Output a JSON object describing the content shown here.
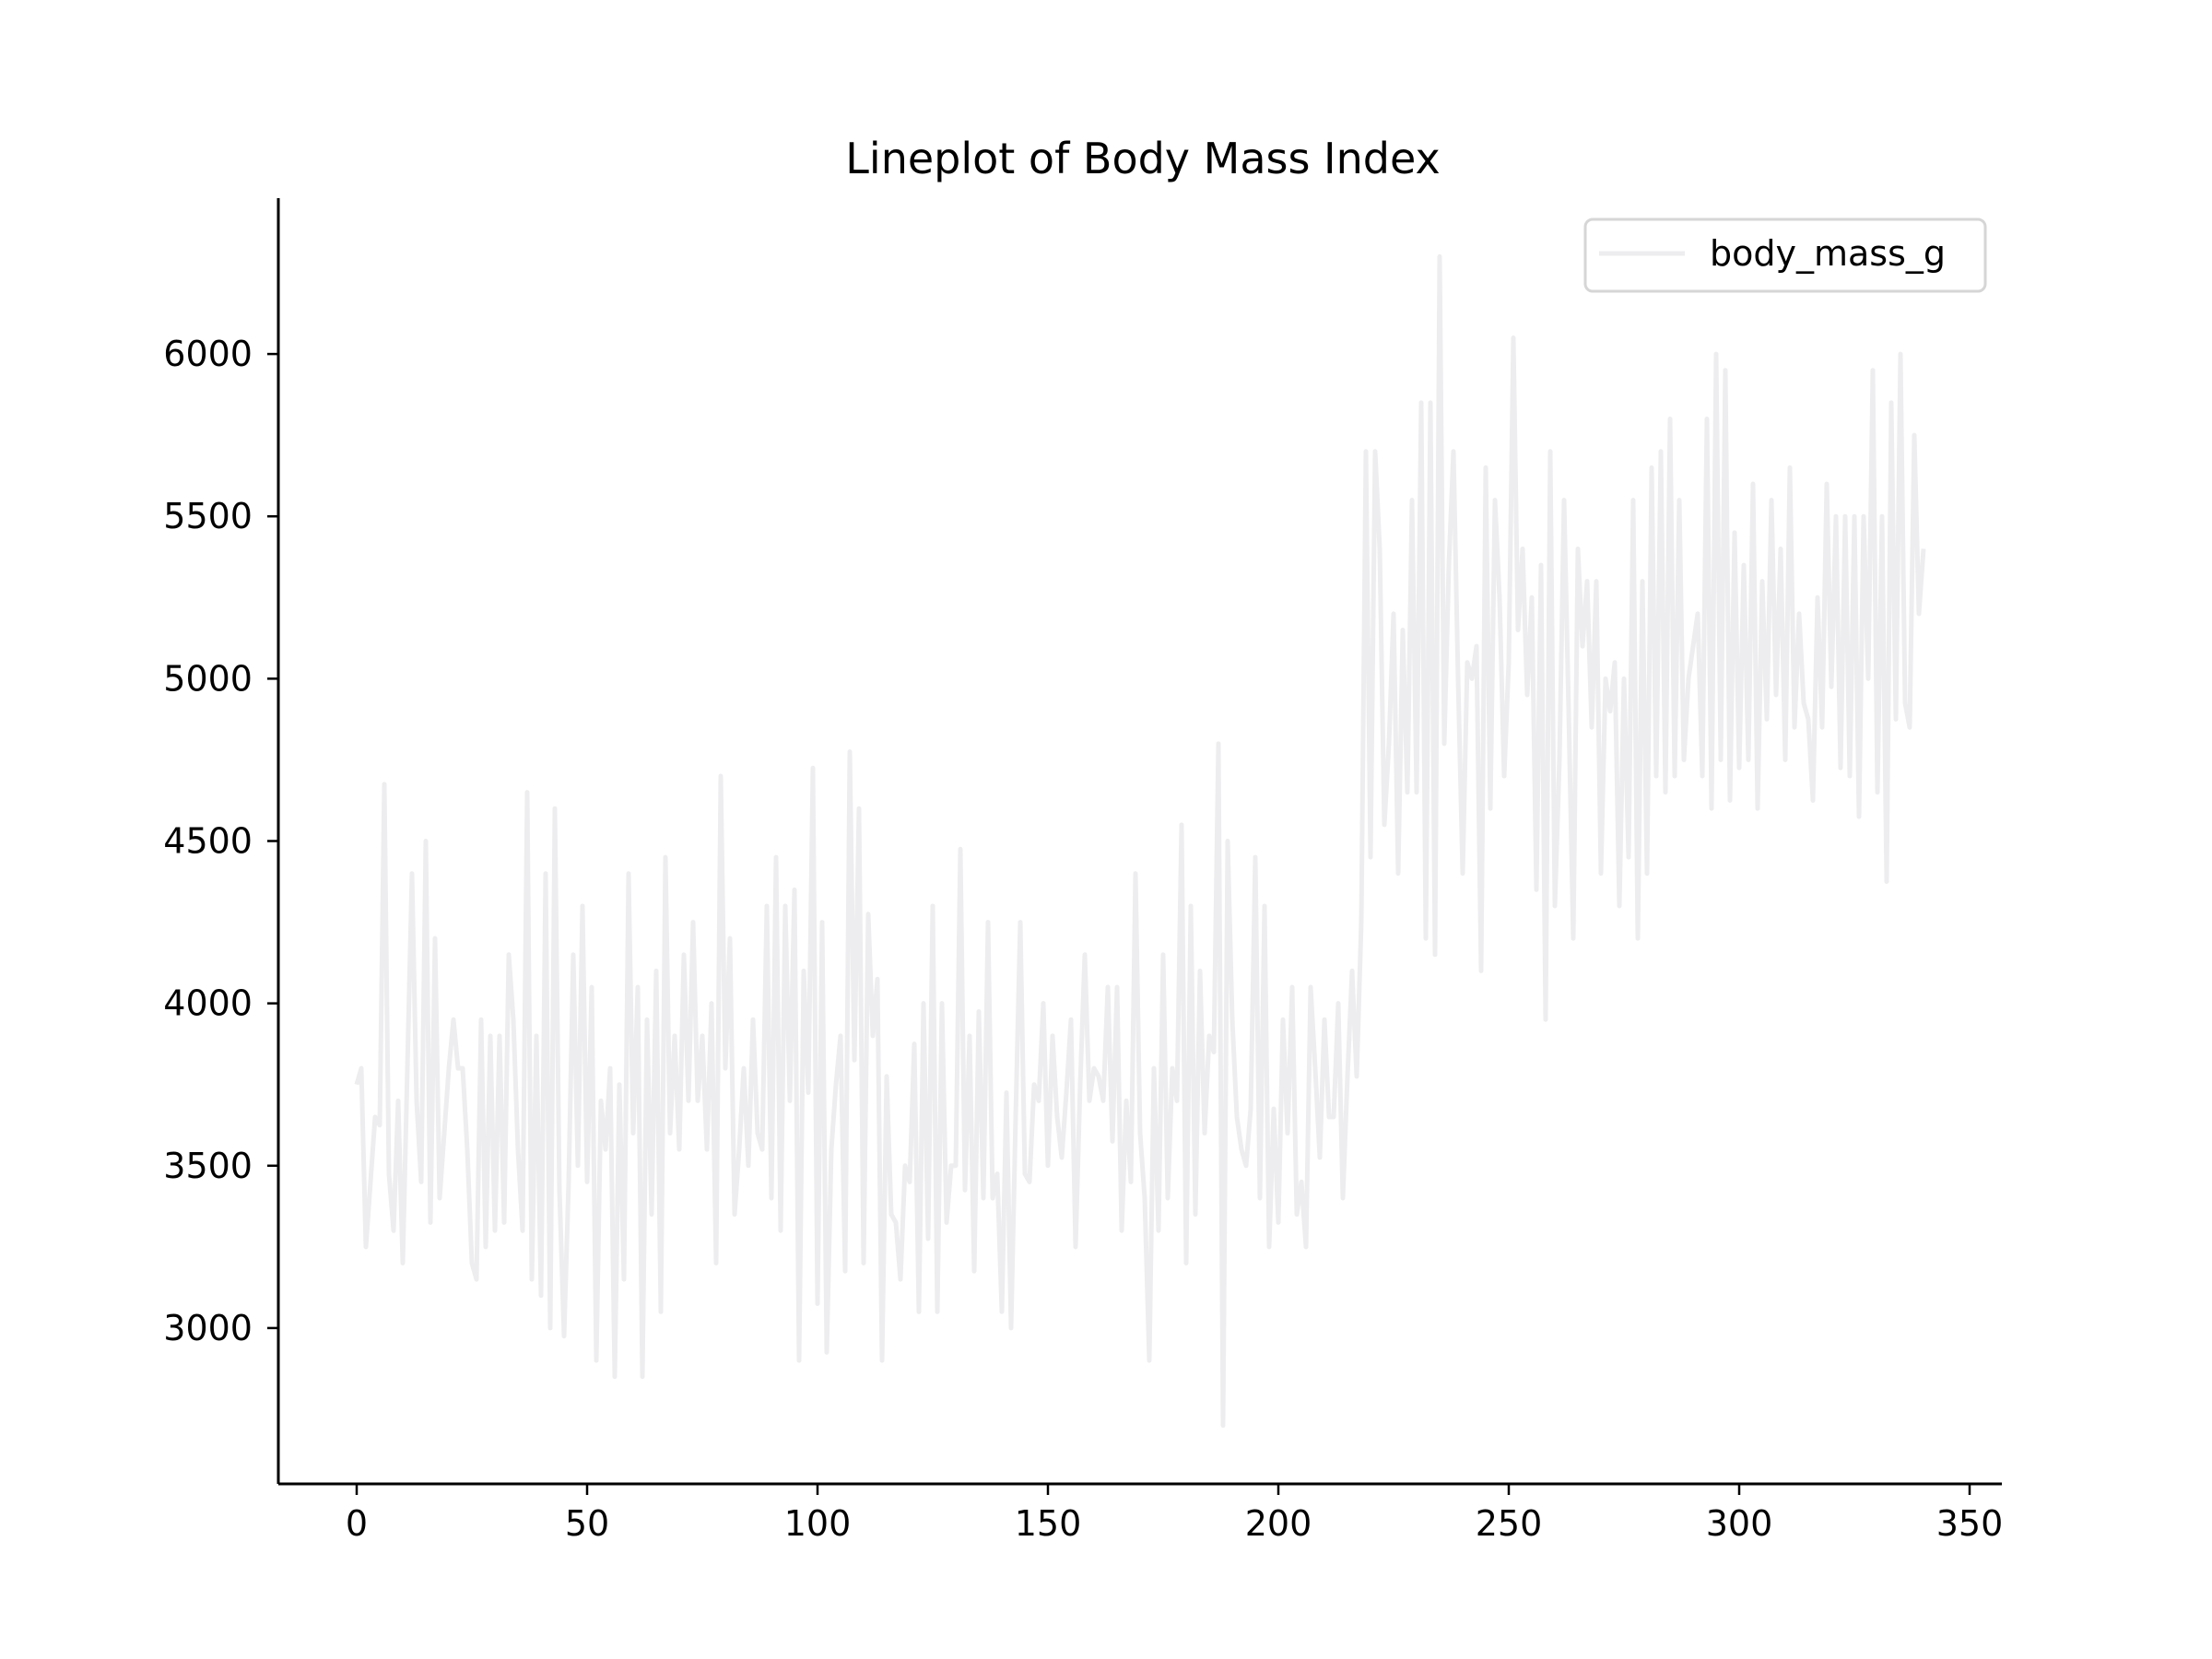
{
  "chart_data": {
    "type": "line",
    "title": "Lineplot of Body Mass Index",
    "xlabel": "",
    "ylabel": "",
    "xlim": [
      -17,
      357
    ],
    "ylim": [
      2520,
      6480
    ],
    "xticks": [
      0,
      50,
      100,
      150,
      200,
      250,
      300,
      350
    ],
    "yticks": [
      3000,
      3500,
      4000,
      4500,
      5000,
      5500,
      6000
    ],
    "grid": false,
    "legend": {
      "position": "top-right",
      "entries": [
        "body_mass_g"
      ]
    },
    "series": [
      {
        "name": "body_mass_g",
        "color": "#ededef",
        "x_start": 0,
        "x_step": 1,
        "values": [
          3750,
          3800,
          3250,
          3450,
          3650,
          3625,
          4675,
          3475,
          3300,
          3700,
          3200,
          3800,
          4400,
          3700,
          3450,
          4500,
          3325,
          4200,
          3400,
          3600,
          3800,
          3950,
          3800,
          3800,
          3550,
          3200,
          3150,
          3950,
          3250,
          3900,
          3300,
          3900,
          3325,
          4150,
          3950,
          3550,
          3300,
          4650,
          3150,
          3900,
          3100,
          4400,
          3000,
          4600,
          3425,
          2975,
          3450,
          4150,
          3500,
          4300,
          3450,
          4050,
          2900,
          3700,
          3550,
          3800,
          2850,
          3750,
          3150,
          4400,
          3600,
          4050,
          2850,
          3950,
          3350,
          4100,
          3050,
          4450,
          3600,
          3900,
          3550,
          4150,
          3700,
          4250,
          3700,
          3900,
          3550,
          4000,
          3200,
          4700,
          3800,
          4200,
          3350,
          3550,
          3800,
          3500,
          3950,
          3600,
          3550,
          4300,
          3400,
          4450,
          3300,
          4300,
          3700,
          4350,
          2900,
          4100,
          3725,
          4725,
          3075,
          4250,
          2925,
          3550,
          3750,
          3900,
          3175,
          4775,
          3825,
          4600,
          3200,
          4275,
          3900,
          4075,
          2900,
          3775,
          3350,
          3325,
          3150,
          3500,
          3450,
          3875,
          3050,
          4000,
          3275,
          4300,
          3050,
          4000,
          3325,
          3500,
          3500,
          4475,
          3425,
          3900,
          3175,
          3975,
          3400,
          4250,
          3400,
          3475,
          3050,
          3725,
          3000,
          3650,
          4250,
          3475,
          3450,
          3750,
          3700,
          4000,
          3500,
          3900,
          3650,
          3525,
          3725,
          3950,
          3250,
          3750,
          4150,
          3700,
          3800,
          3775,
          3700,
          4050,
          3575,
          4050,
          3300,
          3700,
          3450,
          4400,
          3600,
          3400,
          2900,
          3800,
          3300,
          4150,
          3400,
          3800,
          3700,
          4550,
          3200,
          4300,
          3350,
          4100,
          3600,
          3900,
          3850,
          4800,
          2700,
          4500,
          3950,
          3650,
          3550,
          3500,
          3675,
          4450,
          3400,
          4300,
          3250,
          3675,
          3325,
          3950,
          3600,
          4050,
          3350,
          3450,
          3250,
          4050,
          3800,
          3525,
          3950,
          3650,
          3650,
          4000,
          3400,
          3775,
          4100,
          3775,
          4250,
          5700,
          4450,
          5700,
          5400,
          4550,
          4800,
          5200,
          4400,
          5150,
          4650,
          5550,
          4650,
          5850,
          4200,
          5850,
          4150,
          6300,
          4800,
          5350,
          5700,
          5000,
          4400,
          5050,
          5000,
          5100,
          4100,
          5650,
          4600,
          5550,
          5250,
          4700,
          5050,
          6050,
          5150,
          5400,
          4950,
          5250,
          4350,
          5350,
          3950,
          5700,
          4300,
          4750,
          5550,
          4900,
          4200,
          5400,
          5100,
          5300,
          4850,
          5300,
          4400,
          5000,
          4900,
          5050,
          4300,
          5000,
          4450,
          5550,
          4200,
          5300,
          4400,
          5650,
          4700,
          5700,
          4650,
          5800,
          4700,
          5550,
          4750,
          5000,
          5100,
          5200,
          4700,
          5800,
          4600,
          6000,
          4750,
          5950,
          4625,
          5450,
          4725,
          5350,
          4750,
          5600,
          4600,
          5300,
          4875,
          5550,
          4950,
          5400,
          4750,
          5650,
          4850,
          5200,
          4925,
          4875,
          4625,
          5250,
          4850,
          5600,
          4975,
          5500,
          4725,
          5500,
          4700,
          5500,
          4575,
          5500,
          5000,
          5950,
          4650,
          5500,
          4375,
          5850,
          4875,
          6000,
          4925,
          4850,
          5750,
          5200,
          5400
        ]
      }
    ]
  }
}
